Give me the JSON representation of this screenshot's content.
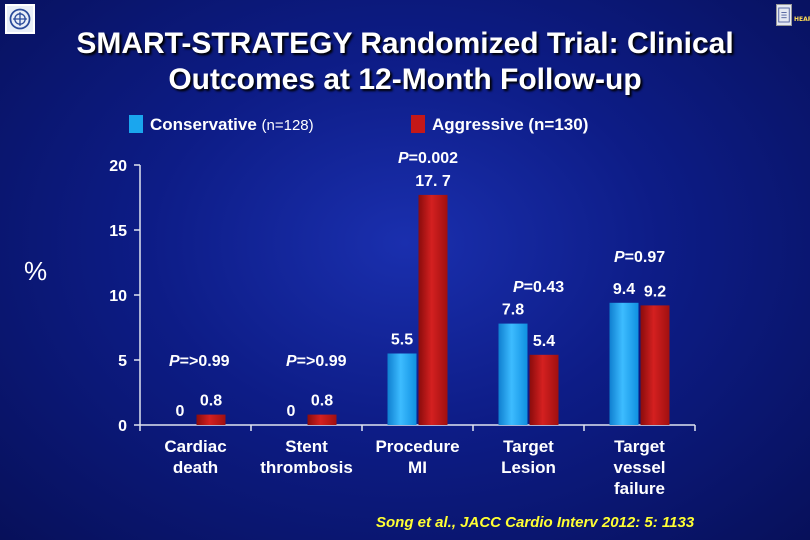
{
  "page": {
    "title_line1": "SMART-STRATEGY Randomized Trial: Clinical",
    "title_line2": "Outcomes at 12-Month Follow-up",
    "citation": "Song et al., JACC Cardio Interv 2012: 5: 1133"
  },
  "colors": {
    "conservative": "#1aa6ee",
    "aggressive": "#c41818"
  },
  "legend": {
    "conservative_label": "Conservative",
    "conservative_n": "(n=128)",
    "aggressive_label": "Aggressive (n=130)"
  },
  "chart_data": {
    "type": "bar",
    "title": "SMART-STRATEGY Randomized Trial: Clinical Outcomes at 12-Month Follow-up",
    "ylabel": "%",
    "xlabel": "",
    "ylim": [
      0,
      20
    ],
    "yticks": [
      0,
      5,
      10,
      15,
      20
    ],
    "categories": [
      [
        "Cardiac",
        "death"
      ],
      [
        "Stent",
        "thrombosis"
      ],
      [
        "Procedure",
        "MI"
      ],
      [
        "Target",
        "Lesion"
      ],
      [
        "Target",
        "vessel",
        "failure"
      ]
    ],
    "series": [
      {
        "name": "Conservative (n=128)",
        "values": [
          0,
          0,
          5.5,
          7.8,
          9.4
        ],
        "labels": [
          "0",
          "0",
          "5.5",
          "7.8",
          "9.4"
        ]
      },
      {
        "name": "Aggressive (n=130)",
        "values": [
          0.8,
          0.8,
          17.7,
          5.4,
          9.2
        ],
        "labels": [
          "0.8",
          "0.8",
          "17. 7",
          "5.4",
          "9.2"
        ]
      }
    ],
    "pvalues": [
      {
        "category": 0,
        "text": "=>0.99"
      },
      {
        "category": 1,
        "text": "=>0.99"
      },
      {
        "category": 2,
        "text": "=0.002"
      },
      {
        "category": 3,
        "text": "=0.43"
      },
      {
        "category": 4,
        "text": "=0.97"
      }
    ],
    "pvalue_prefix": "P"
  }
}
